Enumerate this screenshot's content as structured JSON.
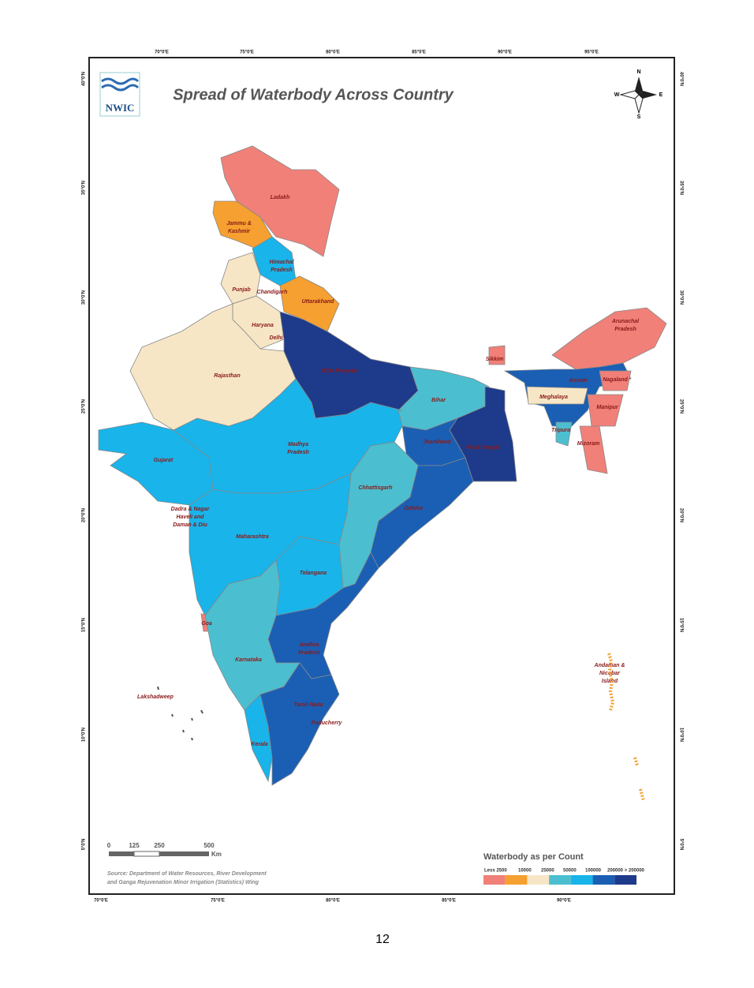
{
  "title": "Spread of Waterbody Across Country",
  "logo": "NWIC",
  "page_number": "12",
  "compass": {
    "n": "N",
    "e": "E",
    "s": "S",
    "w": "W"
  },
  "graticule": {
    "top": [
      "70°0'E",
      "75°0'E",
      "80°0'E",
      "85°0'E",
      "90°0'E",
      "95°0'E"
    ],
    "bottom": [
      "70°0'E",
      "75°0'E",
      "80°0'E",
      "85°0'E",
      "90°0'E"
    ],
    "left": [
      "40°0'N",
      "35°0'N",
      "30°0'N",
      "25°0'N",
      "20°0'N",
      "15°0'N",
      "10°0'N",
      "5°0'N"
    ],
    "right": [
      "40°0'N",
      "35°0'N",
      "30°0'N",
      "25°0'N",
      "20°0'N",
      "15°0'N",
      "10°0'N",
      "5°0'N"
    ]
  },
  "regions": [
    {
      "name": [
        "Ladakh"
      ],
      "color": "#f08078"
    },
    {
      "name": [
        "Jammu &",
        "Kashmir"
      ],
      "color": "#f5a030"
    },
    {
      "name": [
        "Himachal",
        "Pradesh"
      ],
      "color": "#18b4ea"
    },
    {
      "name": [
        "Punjab"
      ],
      "color": "#f7e6c6"
    },
    {
      "name": [
        "Uttarakhand"
      ],
      "color": "#f5a030"
    },
    {
      "name": [
        "Haryana"
      ],
      "color": "#f7e6c6"
    },
    {
      "name": [
        "Rajasthan"
      ],
      "color": "#f7e6c6"
    },
    {
      "name": [
        "Uttar Pradesh"
      ],
      "color": "#1e3a8a"
    },
    {
      "name": [
        "Bihar"
      ],
      "color": "#4bbfd0"
    },
    {
      "name": [
        "Sikkim"
      ],
      "color": "#f08078"
    },
    {
      "name": [
        "West Bengal"
      ],
      "color": "#1e3a8a"
    },
    {
      "name": [
        "Jharkhand"
      ],
      "color": "#1a5fb4"
    },
    {
      "name": [
        "Madhya",
        "Pradesh"
      ],
      "color": "#18b4ea"
    },
    {
      "name": [
        "Gujarat"
      ],
      "color": "#18b4ea"
    },
    {
      "name": [
        "Chhattisgarh"
      ],
      "color": "#4bbfd0"
    },
    {
      "name": [
        "Odisha"
      ],
      "color": "#1a5fb4"
    },
    {
      "name": [
        "Maharashtra"
      ],
      "color": "#18b4ea"
    },
    {
      "name": [
        "Telangana"
      ],
      "color": "#18b4ea"
    },
    {
      "name": [
        "Andhra",
        "Pradesh"
      ],
      "color": "#1a5fb4"
    },
    {
      "name": [
        "Goa"
      ],
      "color": "#f08078"
    },
    {
      "name": [
        "Karnataka"
      ],
      "color": "#4bbfd0"
    },
    {
      "name": [
        "Kerala"
      ],
      "color": "#18b4ea"
    },
    {
      "name": [
        "Tamil Nadu"
      ],
      "color": "#1a5fb4"
    },
    {
      "name": [
        "Arunachal",
        "Pradesh"
      ],
      "color": "#f08078"
    },
    {
      "name": [
        "Assam"
      ],
      "color": "#1a5fb4"
    },
    {
      "name": [
        "Meghalaya"
      ],
      "color": "#f7e6c6"
    },
    {
      "name": [
        "Nagaland"
      ],
      "color": "#f08078"
    },
    {
      "name": [
        "Manipur"
      ],
      "color": "#f08078"
    },
    {
      "name": [
        "Mizoram"
      ],
      "color": "#f08078"
    },
    {
      "name": [
        "Tripura"
      ],
      "color": "#4bbfd0"
    },
    {
      "name": [
        "Chandigarh"
      ]
    },
    {
      "name": [
        "Delhi"
      ]
    },
    {
      "name": [
        "Puducherry"
      ]
    },
    {
      "name": [
        "Dadra & Nagar",
        "Haveli and",
        "Daman & Diu"
      ]
    },
    {
      "name": [
        "Lakshadweep"
      ]
    },
    {
      "name": [
        "Andaman &",
        "Nicobar",
        "Island"
      ]
    }
  ],
  "scale": {
    "labels": [
      "0",
      "125",
      "250",
      "500"
    ],
    "unit": "Km"
  },
  "legend": {
    "title": "Waterbody as per Count",
    "labels": [
      "Less 2500",
      "10000",
      "25000",
      "50000",
      "100000",
      "200000 > 200000"
    ],
    "colors": [
      "#f08078",
      "#f5a030",
      "#f7e6c6",
      "#4bbfd0",
      "#18b4ea",
      "#1a5fb4",
      "#1e3a8a"
    ]
  },
  "source": [
    "Source: Department of Water Resources, River Development",
    "and Ganga Rejuvenation Minor Irrigation (Statistics) Wing"
  ]
}
